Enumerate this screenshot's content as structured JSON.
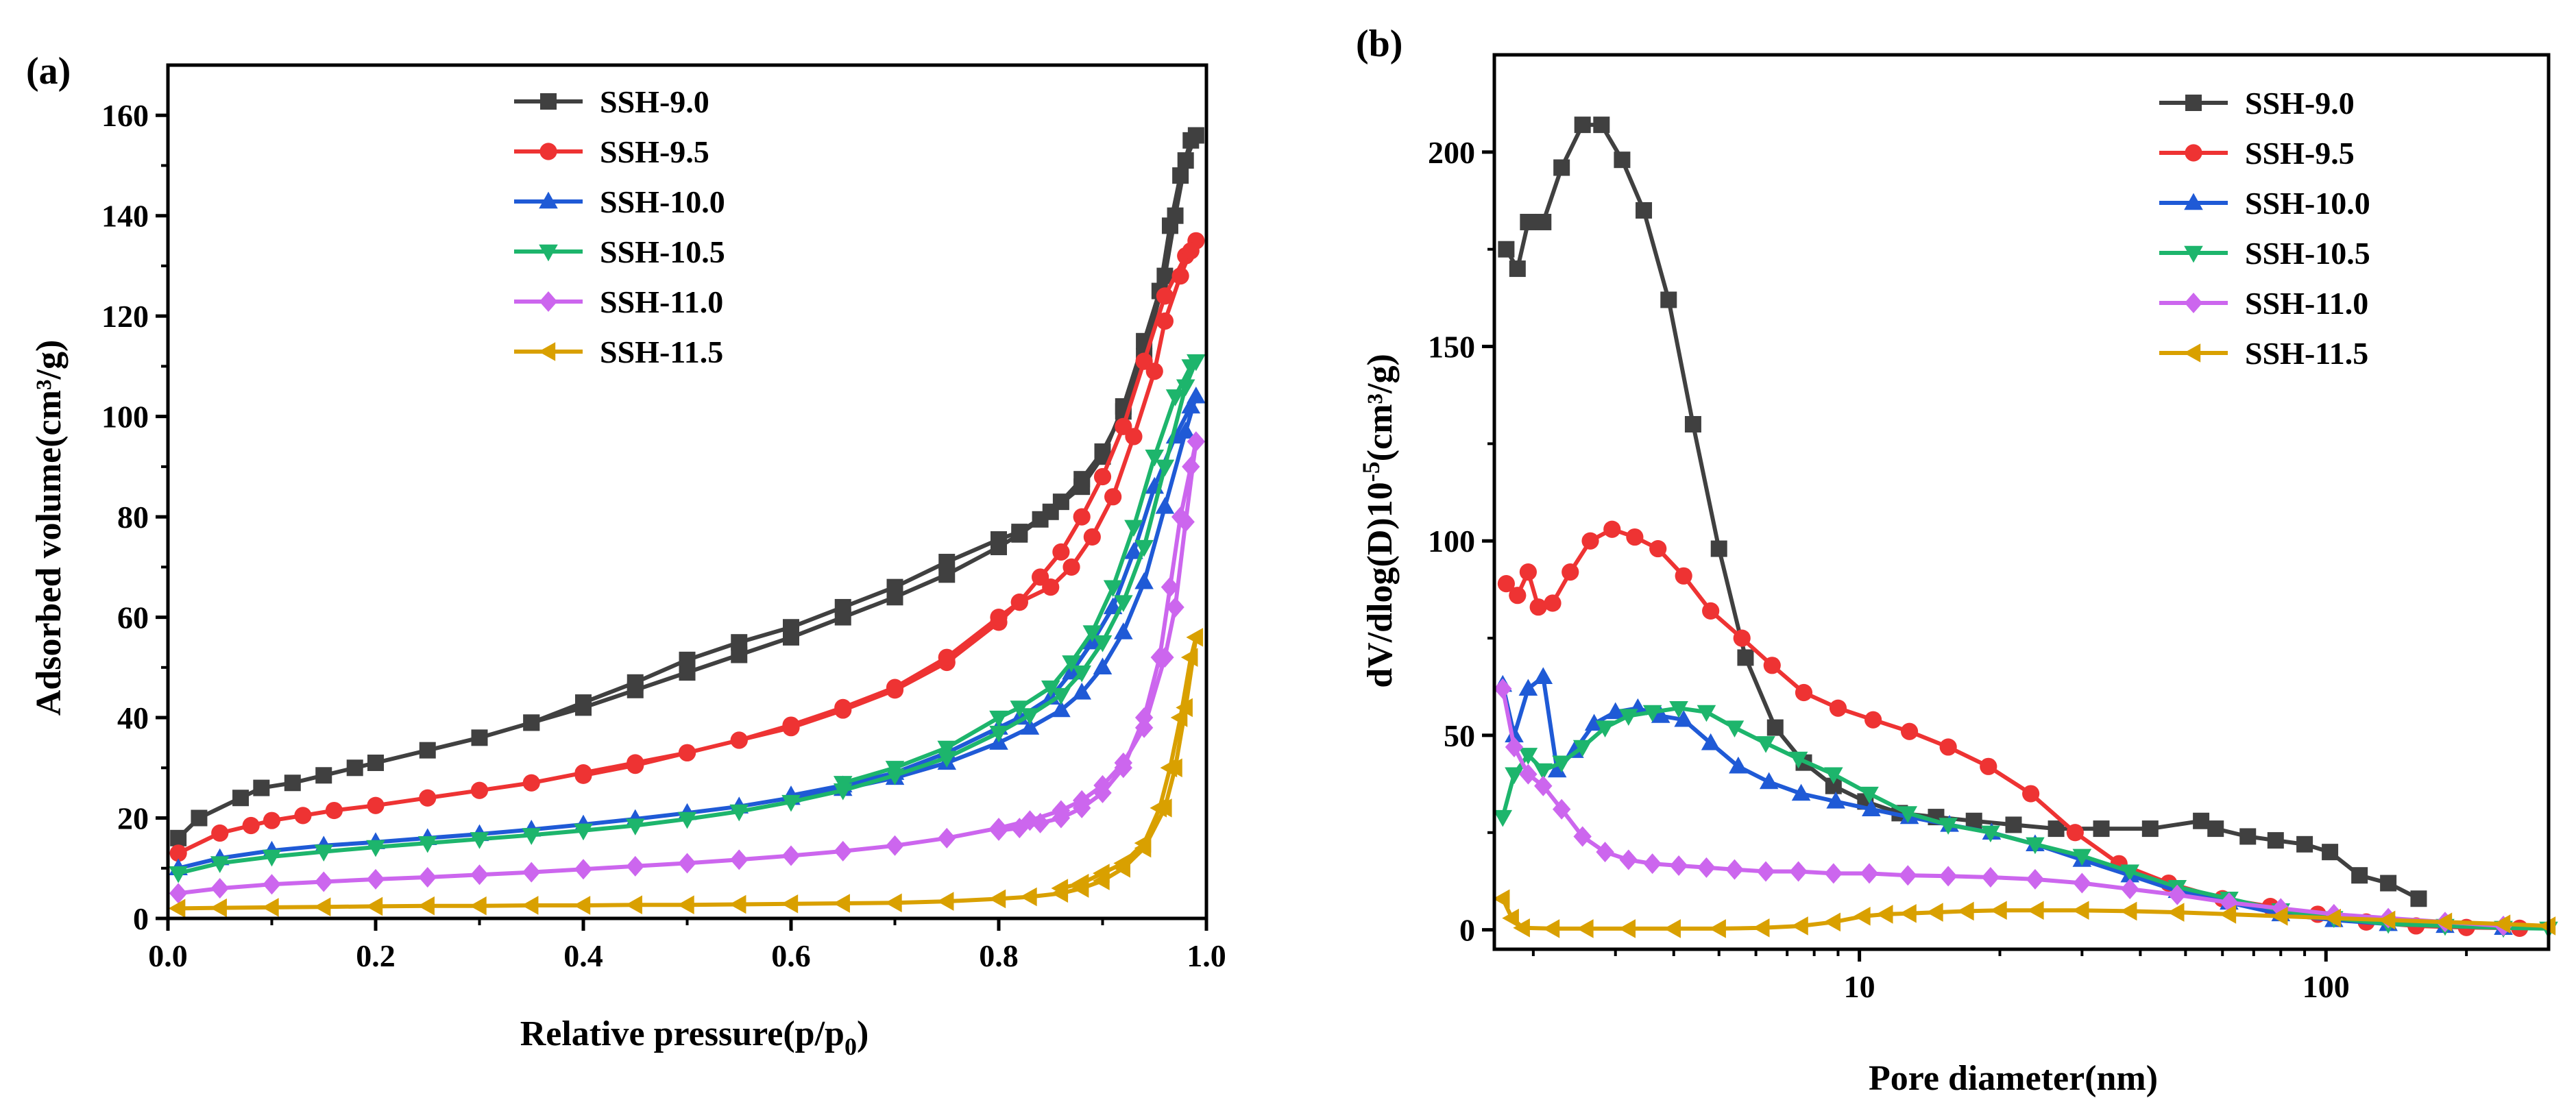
{
  "chart_data": [
    {
      "type": "line",
      "panel_label": "(a)",
      "xlabel_main": "Relative pressure(p/p",
      "xlabel_sub": "0",
      "xlabel_end": ")",
      "ylabel": "Adsorbed volume(cm³/g)",
      "xlim": [
        0,
        1.0
      ],
      "ylim": [
        0,
        170
      ],
      "x_ticks": [
        0.0,
        0.2,
        0.4,
        0.6,
        0.8,
        1.0
      ],
      "x_tick_labels": [
        "0.0",
        "0.2",
        "0.4",
        "0.6",
        "0.8",
        "1.0"
      ],
      "y_ticks": [
        0,
        20,
        40,
        60,
        80,
        100,
        120,
        140,
        160
      ],
      "y_tick_labels": [
        "0",
        "20",
        "40",
        "60",
        "80",
        "100",
        "120",
        "140",
        "160"
      ],
      "log_x": false,
      "legend_position": "top-center",
      "series": [
        {
          "name": "SSH-9.0",
          "color": "#404040",
          "marker": "square",
          "x": [
            0.01,
            0.03,
            0.07,
            0.09,
            0.12,
            0.15,
            0.18,
            0.2,
            0.25,
            0.3,
            0.35,
            0.4,
            0.45,
            0.5,
            0.55,
            0.6,
            0.65,
            0.7,
            0.75,
            0.8,
            0.82,
            0.84,
            0.86,
            0.88,
            0.9,
            0.92,
            0.94,
            0.96,
            0.97,
            0.98,
            0.99,
            0.985,
            0.975,
            0.965,
            0.955,
            0.94,
            0.92,
            0.9,
            0.88,
            0.85,
            0.82,
            0.8,
            0.75,
            0.7,
            0.65,
            0.6,
            0.55,
            0.5,
            0.45,
            0.4,
            0.35
          ],
          "y": [
            16,
            20,
            24,
            26,
            27,
            28.5,
            30,
            31,
            33.5,
            36,
            39,
            42,
            45.5,
            49,
            52.5,
            56,
            60,
            64,
            68.5,
            74,
            76.5,
            79.5,
            83,
            87.5,
            93,
            101,
            112,
            128,
            140,
            151,
            156,
            155,
            148,
            138,
            125,
            115,
            102,
            92,
            86,
            81,
            77,
            75.5,
            71,
            66,
            62,
            58,
            55,
            51.5,
            47,
            43,
            39
          ]
        },
        {
          "name": "SSH-9.5",
          "color": "#ee3333",
          "marker": "circle",
          "x": [
            0.01,
            0.05,
            0.08,
            0.1,
            0.13,
            0.16,
            0.2,
            0.25,
            0.3,
            0.35,
            0.4,
            0.45,
            0.5,
            0.55,
            0.6,
            0.65,
            0.7,
            0.75,
            0.8,
            0.82,
            0.84,
            0.86,
            0.88,
            0.9,
            0.92,
            0.94,
            0.96,
            0.98,
            0.99,
            0.985,
            0.975,
            0.96,
            0.95,
            0.93,
            0.91,
            0.89,
            0.87,
            0.85,
            0.82,
            0.8,
            0.75,
            0.7,
            0.65,
            0.6,
            0.55,
            0.5,
            0.45,
            0.4
          ],
          "y": [
            13,
            17,
            18.5,
            19.5,
            20.5,
            21.5,
            22.5,
            24,
            25.5,
            27,
            29,
            31,
            33,
            35.5,
            38,
            41.5,
            45.5,
            51,
            59,
            63,
            68,
            73,
            80,
            88,
            98,
            111,
            124,
            132,
            135,
            133,
            128,
            119,
            109,
            96,
            84,
            76,
            70,
            66,
            63,
            60,
            52,
            46,
            42,
            38.5,
            35.5,
            33,
            30.5,
            28.5
          ]
        },
        {
          "name": "SSH-10.0",
          "color": "#1f5ad6",
          "marker": "triangle-up",
          "x": [
            0.01,
            0.05,
            0.1,
            0.15,
            0.2,
            0.25,
            0.3,
            0.35,
            0.4,
            0.45,
            0.5,
            0.55,
            0.6,
            0.65,
            0.7,
            0.75,
            0.8,
            0.83,
            0.86,
            0.88,
            0.9,
            0.92,
            0.94,
            0.96,
            0.98,
            0.99,
            0.985,
            0.97,
            0.95,
            0.93,
            0.91,
            0.89,
            0.87,
            0.85,
            0.82,
            0.8,
            0.75,
            0.7,
            0.65,
            0.6
          ],
          "y": [
            10,
            12,
            13.5,
            14.5,
            15.2,
            16,
            16.8,
            17.7,
            18.7,
            19.8,
            21,
            22.3,
            24,
            25.8,
            28,
            31,
            35,
            38,
            41.5,
            45,
            50,
            57,
            67,
            82,
            97,
            104,
            102,
            96,
            86,
            73,
            62,
            55,
            49,
            44,
            40,
            38,
            33,
            29,
            26.5,
            24.5
          ]
        },
        {
          "name": "SSH-10.5",
          "color": "#1db56c",
          "marker": "triangle-down",
          "x": [
            0.01,
            0.05,
            0.1,
            0.15,
            0.2,
            0.25,
            0.3,
            0.35,
            0.4,
            0.45,
            0.5,
            0.55,
            0.6,
            0.65,
            0.7,
            0.75,
            0.8,
            0.83,
            0.86,
            0.88,
            0.9,
            0.92,
            0.94,
            0.96,
            0.98,
            0.99,
            0.985,
            0.97,
            0.95,
            0.93,
            0.91,
            0.89,
            0.87,
            0.85,
            0.82,
            0.8,
            0.75,
            0.7,
            0.65
          ],
          "y": [
            9,
            11,
            12.3,
            13.3,
            14.2,
            15,
            15.8,
            16.6,
            17.5,
            18.5,
            19.8,
            21.3,
            23.2,
            25.5,
            28.5,
            32,
            37,
            40.5,
            44.5,
            49,
            55,
            63,
            74,
            90,
            106,
            111,
            110,
            104,
            92,
            78,
            66,
            57,
            51,
            46,
            42,
            40,
            34,
            30,
            27
          ]
        },
        {
          "name": "SSH-11.0",
          "color": "#cc66ee",
          "marker": "diamond",
          "x": [
            0.01,
            0.05,
            0.1,
            0.15,
            0.2,
            0.25,
            0.3,
            0.35,
            0.4,
            0.45,
            0.5,
            0.55,
            0.6,
            0.65,
            0.7,
            0.75,
            0.8,
            0.83,
            0.86,
            0.88,
            0.9,
            0.92,
            0.94,
            0.96,
            0.97,
            0.98,
            0.99,
            0.985,
            0.975,
            0.965,
            0.955,
            0.94,
            0.92,
            0.9,
            0.88,
            0.86,
            0.84,
            0.82,
            0.8
          ],
          "y": [
            5,
            6,
            6.8,
            7.3,
            7.8,
            8.2,
            8.7,
            9.2,
            9.8,
            10.4,
            11,
            11.7,
            12.5,
            13.4,
            14.5,
            16,
            18,
            19.5,
            21.5,
            23.5,
            26.5,
            31,
            38,
            52,
            62,
            79,
            95,
            90,
            80,
            66,
            52,
            40,
            30,
            25,
            22,
            20,
            19,
            18,
            17.5
          ]
        },
        {
          "name": "SSH-11.5",
          "color": "#d9a000",
          "marker": "triangle-left",
          "x": [
            0.01,
            0.05,
            0.1,
            0.15,
            0.2,
            0.25,
            0.3,
            0.35,
            0.4,
            0.45,
            0.5,
            0.55,
            0.6,
            0.65,
            0.7,
            0.75,
            0.8,
            0.83,
            0.86,
            0.88,
            0.9,
            0.92,
            0.94,
            0.96,
            0.97,
            0.98,
            0.99,
            0.985,
            0.975,
            0.965,
            0.955,
            0.94,
            0.92,
            0.9,
            0.88,
            0.86
          ],
          "y": [
            2,
            2.1,
            2.2,
            2.3,
            2.4,
            2.5,
            2.5,
            2.6,
            2.6,
            2.7,
            2.7,
            2.8,
            2.9,
            3,
            3.1,
            3.4,
            3.9,
            4.3,
            5,
            6,
            7.5,
            10,
            14,
            22,
            30,
            42,
            56,
            52,
            40,
            30,
            22,
            15,
            11,
            9,
            7,
            6
          ]
        }
      ]
    },
    {
      "type": "line",
      "panel_label": "(b)",
      "xlabel": "Pore diameter(nm)",
      "ylabel_main": "dV/dlog(D)10",
      "ylabel_sup": "-5",
      "ylabel_end": "(cm³/g)",
      "xlim": [
        1.65,
        300
      ],
      "ylim": [
        -5,
        225
      ],
      "log_x": true,
      "x_ticks": [
        10,
        100
      ],
      "x_tick_labels": [
        "10",
        "100"
      ],
      "y_ticks": [
        0,
        50,
        100,
        150,
        200
      ],
      "y_tick_labels": [
        "0",
        "50",
        "100",
        "150",
        "200"
      ],
      "legend_position": "top-right",
      "series": [
        {
          "name": "SSH-9.0",
          "color": "#404040",
          "marker": "square",
          "x": [
            1.75,
            1.85,
            1.95,
            2.1,
            2.3,
            2.55,
            2.8,
            3.1,
            3.45,
            3.9,
            4.4,
            5.0,
            5.7,
            6.6,
            7.6,
            8.8,
            10.3,
            12.2,
            14.6,
            17.6,
            21.4,
            26.4,
            33,
            42,
            54,
            58,
            68,
            78,
            90,
            102,
            118,
            136,
            158
          ],
          "y": [
            175,
            170,
            182,
            182,
            196,
            207,
            207,
            198,
            185,
            162,
            130,
            98,
            70,
            52,
            43,
            37,
            33,
            30,
            29,
            28,
            27,
            26,
            26,
            26,
            28,
            26,
            24,
            23,
            22,
            20,
            14,
            12,
            8
          ]
        },
        {
          "name": "SSH-9.5",
          "color": "#ee3333",
          "marker": "circle",
          "x": [
            1.75,
            1.85,
            1.95,
            2.05,
            2.2,
            2.4,
            2.65,
            2.95,
            3.3,
            3.7,
            4.2,
            4.8,
            5.6,
            6.5,
            7.6,
            9.0,
            10.7,
            12.8,
            15.5,
            18.9,
            23.3,
            29,
            36,
            46,
            60,
            76,
            96,
            122,
            156,
            200,
            260
          ],
          "y": [
            89,
            86,
            92,
            83,
            84,
            92,
            100,
            103,
            101,
            98,
            91,
            82,
            75,
            68,
            61,
            57,
            54,
            51,
            47,
            42,
            35,
            25,
            17,
            12,
            8,
            6,
            4,
            2,
            1,
            0.6,
            0.4
          ]
        },
        {
          "name": "SSH-10.0",
          "color": "#1f5ad6",
          "marker": "triangle-up",
          "x": [
            1.72,
            1.82,
            1.95,
            2.1,
            2.25,
            2.45,
            2.7,
            3.0,
            3.35,
            3.75,
            4.2,
            4.8,
            5.5,
            6.4,
            7.5,
            8.9,
            10.6,
            12.8,
            15.6,
            19.2,
            23.8,
            30,
            38,
            48,
            62,
            80,
            104,
            136,
            180,
            240
          ],
          "y": [
            63,
            50,
            62,
            65,
            41,
            46,
            53,
            56,
            57,
            55,
            54,
            48,
            42,
            38,
            35,
            33,
            31,
            29,
            27,
            25,
            22,
            18,
            14,
            10,
            7,
            4,
            2.5,
            1.5,
            1,
            0.5
          ]
        },
        {
          "name": "SSH-10.5",
          "color": "#1db56c",
          "marker": "triangle-down",
          "x": [
            1.72,
            1.82,
            1.95,
            2.1,
            2.3,
            2.55,
            2.85,
            3.2,
            3.6,
            4.1,
            4.7,
            5.4,
            6.3,
            7.4,
            8.8,
            10.5,
            12.7,
            15.5,
            19.1,
            23.8,
            30,
            38,
            48,
            62,
            80,
            104,
            136,
            180,
            240,
            300
          ],
          "y": [
            29,
            40,
            45,
            41,
            43,
            47,
            52,
            55,
            56,
            57,
            56,
            52,
            48,
            44,
            40,
            35,
            30,
            27,
            25,
            22,
            19,
            15,
            11,
            8,
            5,
            3,
            1.5,
            1,
            0.5,
            0.3
          ]
        },
        {
          "name": "SSH-11.0",
          "color": "#cc66ee",
          "marker": "diamond",
          "x": [
            1.72,
            1.82,
            1.95,
            2.1,
            2.3,
            2.55,
            2.85,
            3.2,
            3.6,
            4.1,
            4.7,
            5.4,
            6.3,
            7.4,
            8.8,
            10.5,
            12.7,
            15.5,
            19.1,
            23.8,
            30,
            38,
            48,
            62,
            80,
            104,
            136,
            180,
            240
          ],
          "y": [
            62,
            47,
            40,
            37,
            31,
            24,
            20,
            18,
            17,
            16.5,
            16,
            15.5,
            15,
            15,
            14.5,
            14.5,
            14,
            13.8,
            13.5,
            13,
            12,
            10.5,
            9,
            7,
            5.5,
            4,
            3,
            2,
            1
          ]
        },
        {
          "name": "SSH-11.5",
          "color": "#d9a000",
          "marker": "triangle-left",
          "x": [
            1.72,
            1.8,
            1.9,
            2.2,
            2.6,
            3.2,
            4.0,
            5.0,
            6.2,
            7.5,
            8.8,
            10.2,
            11.4,
            12.8,
            14.6,
            17,
            20,
            24,
            30,
            38,
            48,
            62,
            80,
            104,
            136,
            180,
            240,
            300
          ],
          "y": [
            8,
            3,
            0.5,
            0.3,
            0.3,
            0.3,
            0.3,
            0.3,
            0.5,
            1,
            2,
            3.5,
            4,
            4.2,
            4.5,
            4.8,
            5,
            5,
            5,
            4.8,
            4.5,
            4,
            3.5,
            3,
            2.5,
            2,
            1.5,
            1
          ]
        }
      ]
    }
  ]
}
